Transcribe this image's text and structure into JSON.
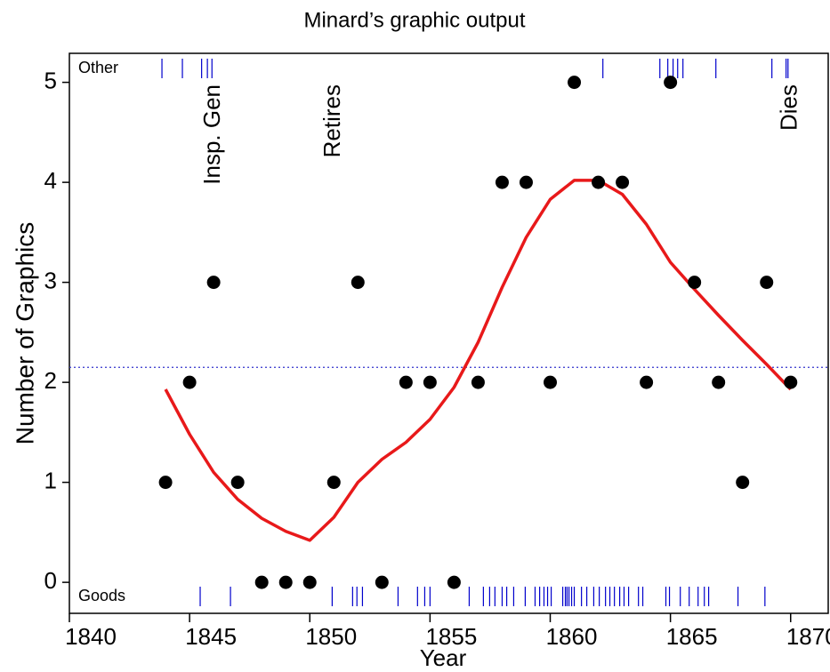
{
  "chart_data": {
    "type": "scatter",
    "title": "Minard’s graphic output",
    "xlabel": "Year",
    "ylabel": "Number of Graphics",
    "x": [
      1844,
      1845,
      1846,
      1847,
      1848,
      1849,
      1850,
      1851,
      1852,
      1853,
      1854,
      1855,
      1856,
      1857,
      1858,
      1859,
      1860,
      1861,
      1862,
      1863,
      1864,
      1865,
      1866,
      1867,
      1868,
      1869,
      1870
    ],
    "values": [
      1,
      2,
      3,
      1,
      0,
      0,
      0,
      1,
      3,
      0,
      2,
      2,
      0,
      2,
      4,
      4,
      2,
      5,
      4,
      4,
      2,
      5,
      3,
      2,
      1,
      3,
      2
    ],
    "color": "#000000",
    "smooth": {
      "color": "#e8191a",
      "x": [
        1844,
        1845,
        1846,
        1847,
        1848,
        1849,
        1850,
        1851,
        1852,
        1853,
        1854,
        1855,
        1856,
        1857,
        1858,
        1859,
        1860,
        1861,
        1862,
        1863,
        1864,
        1865,
        1866,
        1867,
        1868,
        1869,
        1870
      ],
      "values": [
        1.93,
        1.48,
        1.1,
        0.83,
        0.64,
        0.51,
        0.42,
        0.65,
        1.0,
        1.23,
        1.4,
        1.63,
        1.95,
        2.4,
        2.95,
        3.45,
        3.83,
        4.02,
        4.02,
        3.88,
        3.58,
        3.2,
        2.93,
        2.67,
        2.42,
        2.18,
        1.93
      ]
    },
    "reference_line": {
      "value": 2.15,
      "color": "#3333cc"
    },
    "rugs": [
      {
        "name": "Other",
        "position": "top",
        "color": "#0000cc",
        "x": [
          1843.85,
          1844.7,
          1845.5,
          1845.74,
          1845.93,
          1862.19,
          1864.56,
          1864.89,
          1865.11,
          1865.3,
          1865.52,
          1866.89,
          1869.22,
          1869.81,
          1869.89
        ]
      },
      {
        "name": "Goods",
        "position": "bottom",
        "color": "#0000cc",
        "x": [
          1845.44,
          1846.7,
          1850.93,
          1851.78,
          1851.96,
          1852.19,
          1853.67,
          1854.48,
          1854.78,
          1855.0,
          1856.63,
          1857.22,
          1857.48,
          1857.7,
          1858.0,
          1858.19,
          1858.48,
          1858.96,
          1859.37,
          1859.56,
          1859.74,
          1859.89,
          1860.04,
          1860.52,
          1860.63,
          1860.7,
          1860.78,
          1860.89,
          1861.0,
          1861.3,
          1861.52,
          1861.81,
          1862.04,
          1862.3,
          1862.48,
          1862.67,
          1862.89,
          1863.07,
          1863.26,
          1863.67,
          1863.85,
          1864.81,
          1864.96,
          1865.41,
          1865.78,
          1866.15,
          1866.41,
          1866.59,
          1867.81,
          1868.93
        ]
      }
    ],
    "annotations": [
      {
        "text": "Insp. Gen",
        "x": 1846
      },
      {
        "text": "Retires",
        "x": 1851
      },
      {
        "text": "Dies",
        "x": 1870
      }
    ],
    "xlim": [
      1840,
      1871.6
    ],
    "ylim": [
      -0.31,
      5.29
    ],
    "xticks": [
      1840,
      1845,
      1850,
      1855,
      1860,
      1865,
      1870
    ],
    "yticks": [
      0,
      1,
      2,
      3,
      4,
      5
    ]
  }
}
